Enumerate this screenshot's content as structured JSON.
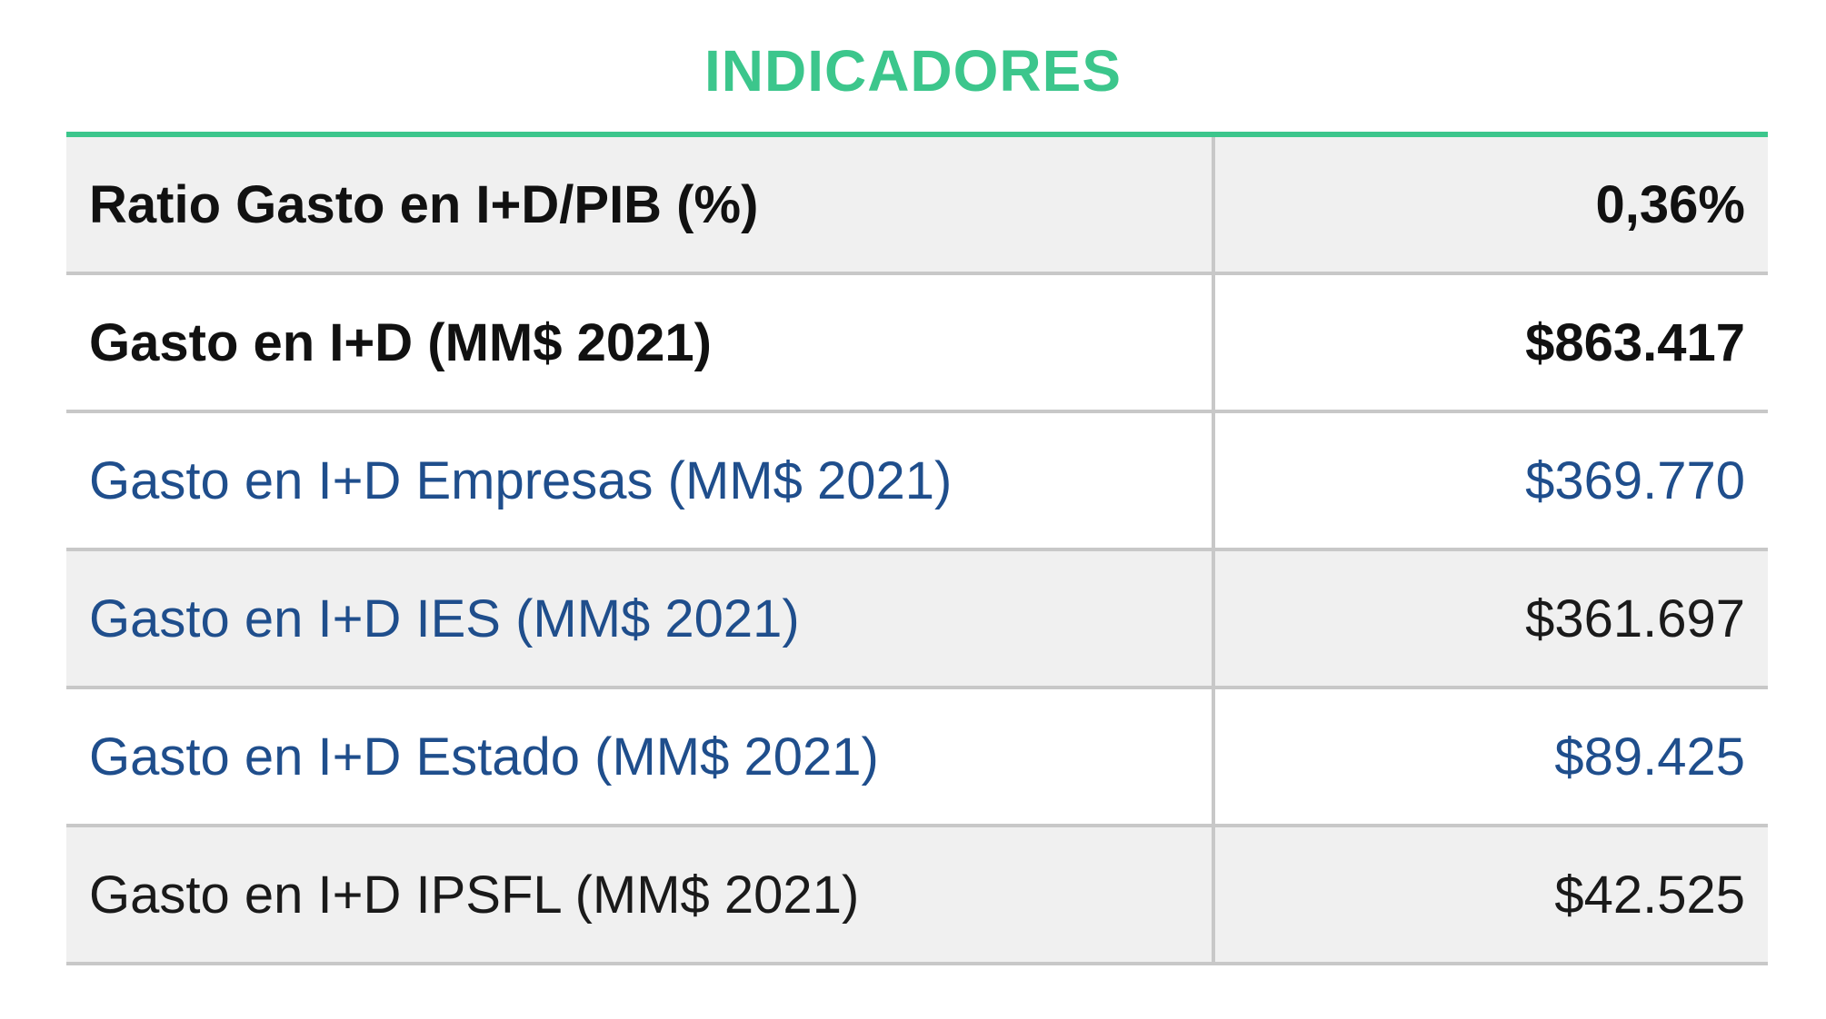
{
  "title": "INDICADORES",
  "colors": {
    "accent": "#3cc68c",
    "blue_text": "#1f4e8c",
    "row_shade": "#f0f0f0",
    "divider": "#c8c8c8"
  },
  "rows": [
    {
      "label": "Ratio Gasto en I+D/PIB (%)",
      "value": "0,36%"
    },
    {
      "label": "Gasto en I+D (MM$ 2021)",
      "value": "$863.417"
    },
    {
      "label": "Gasto en I+D Empresas (MM$ 2021)",
      "value": "$369.770"
    },
    {
      "label": "Gasto en I+D IES (MM$ 2021)",
      "value": "$361.697"
    },
    {
      "label": "Gasto en I+D Estado (MM$ 2021)",
      "value": "$89.425"
    },
    {
      "label": "Gasto en I+D IPSFL (MM$ 2021)",
      "value": "$42.525"
    }
  ]
}
